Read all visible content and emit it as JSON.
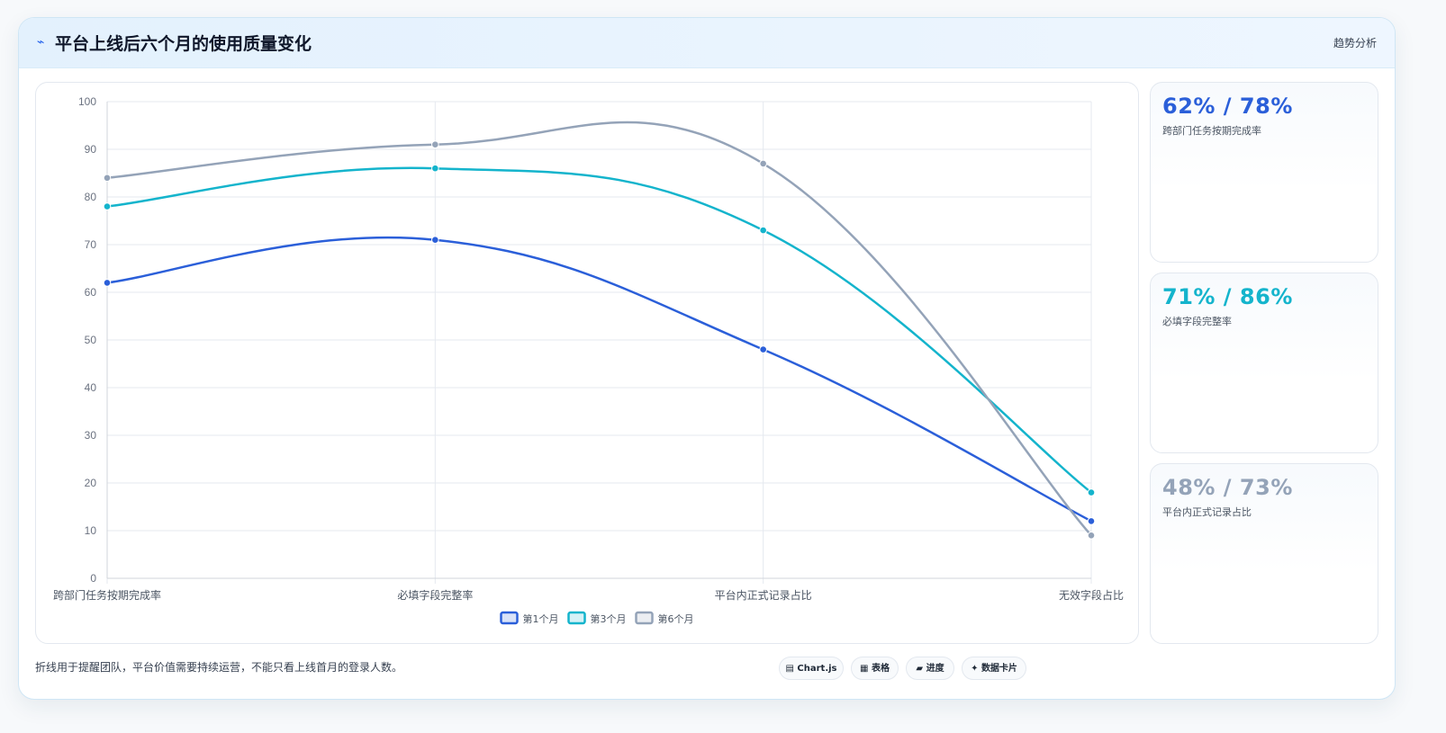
{
  "header": {
    "icon": "⌁",
    "title": "平台上线后六个月的使用质量变化",
    "tag": "趋势分析"
  },
  "side_cards": [
    {
      "value": "62% / 78%",
      "label": "跨部门任务按期完成率",
      "color": "#2b5fd9"
    },
    {
      "value": "71% / 86%",
      "label": "必填字段完整率",
      "color": "#14b4cc"
    },
    {
      "value": "48% / 73%",
      "label": "平台内正式记录占比",
      "color": "#94a3b8"
    }
  ],
  "footer": {
    "note": "折线用于提醒团队，平台价值需要持续运营，不能只看上线首月的登录人数。",
    "pills": [
      {
        "icon": "▤",
        "label": "Chart.js"
      },
      {
        "icon": "▦",
        "label": "表格"
      },
      {
        "icon": "▰",
        "label": "进度"
      },
      {
        "icon": "✦",
        "label": "数据卡片"
      }
    ]
  },
  "chart_data": {
    "type": "line",
    "categories": [
      "跨部门任务按期完成率",
      "必填字段完整率",
      "平台内正式记录占比",
      "无效字段占比"
    ],
    "series": [
      {
        "name": "第1个月",
        "values": [
          62,
          71,
          48,
          12
        ],
        "color": "#2b5fd9"
      },
      {
        "name": "第3个月",
        "values": [
          78,
          86,
          73,
          18
        ],
        "color": "#14b4cc"
      },
      {
        "name": "第6个月",
        "values": [
          84,
          91,
          87,
          9
        ],
        "color": "#94a3b8"
      }
    ],
    "ylim": [
      0,
      100
    ],
    "yticks": [
      0,
      10,
      20,
      30,
      40,
      50,
      60,
      70,
      80,
      90,
      100
    ],
    "grid": true,
    "legend": "bottom-center",
    "smooth": true
  }
}
